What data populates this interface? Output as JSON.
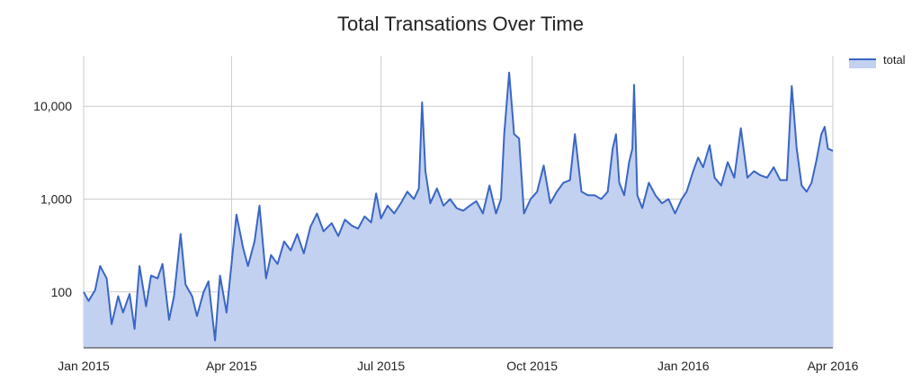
{
  "chart_data": {
    "type": "area",
    "title": "Total Transations Over Time",
    "xlabel": "",
    "ylabel": "",
    "y_scale": "log",
    "ylim": [
      25,
      35000
    ],
    "xlim": [
      "2015-01-01",
      "2016-04-01"
    ],
    "grid": true,
    "legend_position": "top-right",
    "x_ticks": [
      {
        "value": "2015-01-01",
        "label": "Jan 2015"
      },
      {
        "value": "2015-04-01",
        "label": "Apr 2015"
      },
      {
        "value": "2015-07-01",
        "label": "Jul 2015"
      },
      {
        "value": "2015-10-01",
        "label": "Oct 2015"
      },
      {
        "value": "2016-01-01",
        "label": "Jan 2016"
      },
      {
        "value": "2016-04-01",
        "label": "Apr 2016"
      }
    ],
    "y_ticks": [
      {
        "value": 100,
        "label": "100"
      },
      {
        "value": 1000,
        "label": "1,000"
      },
      {
        "value": 10000,
        "label": "10,000"
      }
    ],
    "series": [
      {
        "name": "total",
        "color": "#3a66c5",
        "fill": "#c2d1f0",
        "points": [
          [
            "2015-01-01",
            100
          ],
          [
            "2015-01-04",
            80
          ],
          [
            "2015-01-08",
            105
          ],
          [
            "2015-01-11",
            190
          ],
          [
            "2015-01-15",
            140
          ],
          [
            "2015-01-18",
            45
          ],
          [
            "2015-01-22",
            90
          ],
          [
            "2015-01-25",
            60
          ],
          [
            "2015-01-29",
            95
          ],
          [
            "2015-02-01",
            40
          ],
          [
            "2015-02-04",
            190
          ],
          [
            "2015-02-08",
            70
          ],
          [
            "2015-02-11",
            150
          ],
          [
            "2015-02-15",
            140
          ],
          [
            "2015-02-18",
            200
          ],
          [
            "2015-02-22",
            50
          ],
          [
            "2015-02-25",
            90
          ],
          [
            "2015-03-01",
            420
          ],
          [
            "2015-03-04",
            120
          ],
          [
            "2015-03-08",
            90
          ],
          [
            "2015-03-11",
            55
          ],
          [
            "2015-03-15",
            100
          ],
          [
            "2015-03-18",
            130
          ],
          [
            "2015-03-22",
            30
          ],
          [
            "2015-03-25",
            150
          ],
          [
            "2015-03-29",
            60
          ],
          [
            "2015-04-01",
            200
          ],
          [
            "2015-04-04",
            680
          ],
          [
            "2015-04-08",
            300
          ],
          [
            "2015-04-11",
            190
          ],
          [
            "2015-04-15",
            350
          ],
          [
            "2015-04-18",
            850
          ],
          [
            "2015-04-22",
            140
          ],
          [
            "2015-04-25",
            250
          ],
          [
            "2015-04-29",
            200
          ],
          [
            "2015-05-03",
            350
          ],
          [
            "2015-05-07",
            280
          ],
          [
            "2015-05-11",
            420
          ],
          [
            "2015-05-15",
            260
          ],
          [
            "2015-05-19",
            500
          ],
          [
            "2015-05-23",
            700
          ],
          [
            "2015-05-27",
            450
          ],
          [
            "2015-06-01",
            550
          ],
          [
            "2015-06-05",
            400
          ],
          [
            "2015-06-09",
            600
          ],
          [
            "2015-06-13",
            520
          ],
          [
            "2015-06-17",
            480
          ],
          [
            "2015-06-21",
            650
          ],
          [
            "2015-06-25",
            560
          ],
          [
            "2015-06-28",
            1150
          ],
          [
            "2015-07-01",
            620
          ],
          [
            "2015-07-05",
            850
          ],
          [
            "2015-07-09",
            700
          ],
          [
            "2015-07-13",
            900
          ],
          [
            "2015-07-17",
            1200
          ],
          [
            "2015-07-21",
            1000
          ],
          [
            "2015-07-24",
            1300
          ],
          [
            "2015-07-26",
            11000
          ],
          [
            "2015-07-28",
            2000
          ],
          [
            "2015-07-31",
            900
          ],
          [
            "2015-08-04",
            1300
          ],
          [
            "2015-08-08",
            850
          ],
          [
            "2015-08-12",
            1000
          ],
          [
            "2015-08-16",
            800
          ],
          [
            "2015-08-20",
            750
          ],
          [
            "2015-08-24",
            850
          ],
          [
            "2015-08-28",
            950
          ],
          [
            "2015-09-01",
            700
          ],
          [
            "2015-09-05",
            1400
          ],
          [
            "2015-09-09",
            700
          ],
          [
            "2015-09-12",
            1000
          ],
          [
            "2015-09-14",
            5000
          ],
          [
            "2015-09-17",
            23000
          ],
          [
            "2015-09-20",
            5000
          ],
          [
            "2015-09-23",
            4500
          ],
          [
            "2015-09-26",
            700
          ],
          [
            "2015-09-30",
            1000
          ],
          [
            "2015-10-04",
            1200
          ],
          [
            "2015-10-08",
            2300
          ],
          [
            "2015-10-12",
            900
          ],
          [
            "2015-10-16",
            1200
          ],
          [
            "2015-10-20",
            1500
          ],
          [
            "2015-10-24",
            1600
          ],
          [
            "2015-10-27",
            5000
          ],
          [
            "2015-10-31",
            1200
          ],
          [
            "2015-11-04",
            1100
          ],
          [
            "2015-11-08",
            1100
          ],
          [
            "2015-11-12",
            1000
          ],
          [
            "2015-11-16",
            1200
          ],
          [
            "2015-11-19",
            3500
          ],
          [
            "2015-11-21",
            5000
          ],
          [
            "2015-11-23",
            1500
          ],
          [
            "2015-11-26",
            1100
          ],
          [
            "2015-11-29",
            2500
          ],
          [
            "2015-12-01",
            3500
          ],
          [
            "2015-12-02",
            17000
          ],
          [
            "2015-12-04",
            1100
          ],
          [
            "2015-12-07",
            800
          ],
          [
            "2015-12-11",
            1500
          ],
          [
            "2015-12-15",
            1100
          ],
          [
            "2015-12-19",
            900
          ],
          [
            "2015-12-23",
            1000
          ],
          [
            "2015-12-27",
            700
          ],
          [
            "2015-12-31",
            1000
          ],
          [
            "2016-01-03",
            1200
          ],
          [
            "2016-01-07",
            2000
          ],
          [
            "2016-01-10",
            2800
          ],
          [
            "2016-01-13",
            2200
          ],
          [
            "2016-01-17",
            3800
          ],
          [
            "2016-01-20",
            1700
          ],
          [
            "2016-01-24",
            1400
          ],
          [
            "2016-01-28",
            2500
          ],
          [
            "2016-02-01",
            1700
          ],
          [
            "2016-02-05",
            5800
          ],
          [
            "2016-02-09",
            1700
          ],
          [
            "2016-02-13",
            2000
          ],
          [
            "2016-02-17",
            1800
          ],
          [
            "2016-02-21",
            1700
          ],
          [
            "2016-02-25",
            2200
          ],
          [
            "2016-02-29",
            1600
          ],
          [
            "2016-03-04",
            1600
          ],
          [
            "2016-03-07",
            16500
          ],
          [
            "2016-03-10",
            3500
          ],
          [
            "2016-03-13",
            1400
          ],
          [
            "2016-03-16",
            1200
          ],
          [
            "2016-03-19",
            1500
          ],
          [
            "2016-03-22",
            2600
          ],
          [
            "2016-03-25",
            5000
          ],
          [
            "2016-03-27",
            6000
          ],
          [
            "2016-03-29",
            3500
          ],
          [
            "2016-04-01",
            3300
          ]
        ]
      }
    ]
  }
}
